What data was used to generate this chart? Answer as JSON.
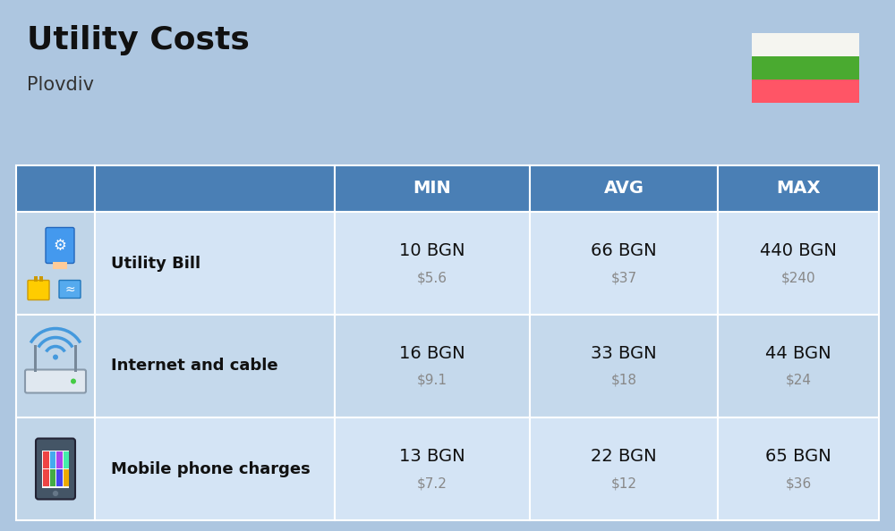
{
  "title": "Utility Costs",
  "subtitle": "Plovdiv",
  "background_color": "#adc6e0",
  "header_bg_color": "#4a7fb5",
  "header_text_color": "#ffffff",
  "row_colors": [
    "#d4e4f5",
    "#c5d9ec"
  ],
  "icon_col_color": "#c0d5e8",
  "columns": [
    "",
    "",
    "MIN",
    "AVG",
    "MAX"
  ],
  "rows": [
    {
      "label": "Utility Bill",
      "min_bgn": "10 BGN",
      "min_usd": "$5.6",
      "avg_bgn": "66 BGN",
      "avg_usd": "$37",
      "max_bgn": "440 BGN",
      "max_usd": "$240",
      "icon": "utility"
    },
    {
      "label": "Internet and cable",
      "min_bgn": "16 BGN",
      "min_usd": "$9.1",
      "avg_bgn": "33 BGN",
      "avg_usd": "$18",
      "max_bgn": "44 BGN",
      "max_usd": "$24",
      "icon": "internet"
    },
    {
      "label": "Mobile phone charges",
      "min_bgn": "13 BGN",
      "min_usd": "$7.2",
      "avg_bgn": "22 BGN",
      "avg_usd": "$12",
      "max_bgn": "65 BGN",
      "max_usd": "$36",
      "icon": "mobile"
    }
  ],
  "flag_white": "#f5f5f0",
  "flag_green": "#4aaa30",
  "flag_red": "#ff5566",
  "label_fontsize": 13,
  "value_fontsize": 14,
  "usd_fontsize": 11,
  "header_fontsize": 14,
  "title_fontsize": 26,
  "subtitle_fontsize": 15
}
